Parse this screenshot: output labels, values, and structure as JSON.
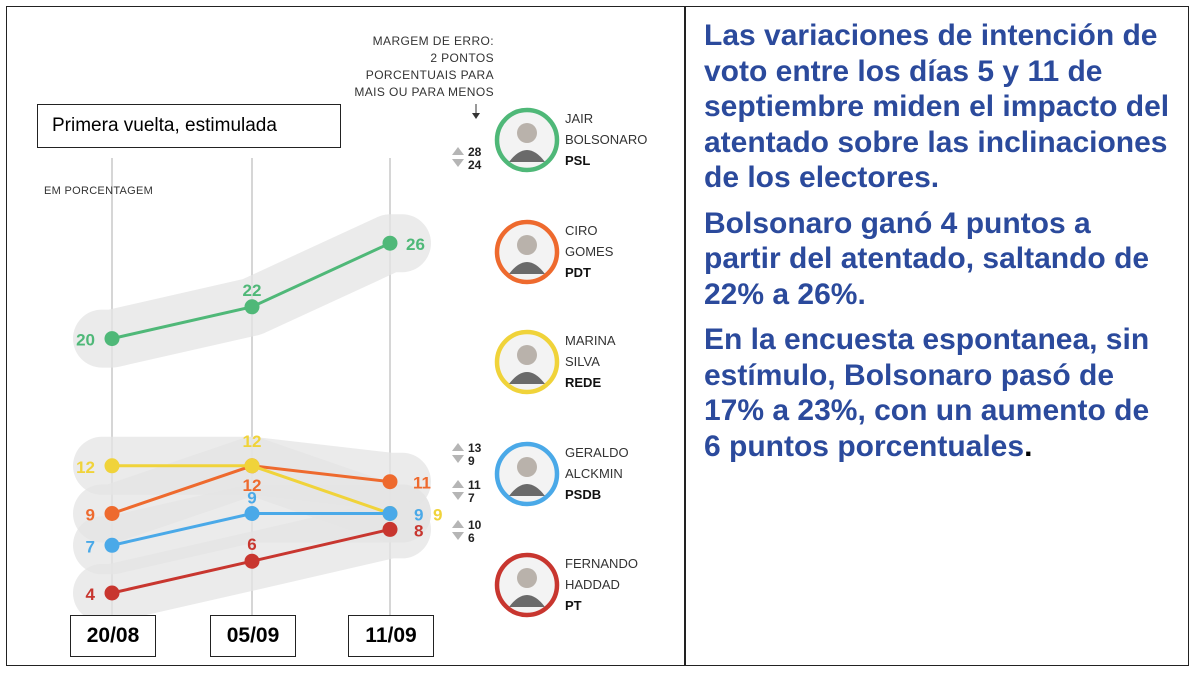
{
  "chart_data": {
    "type": "line",
    "title": "Primera vuelta, estimulada",
    "unit_label": "EM PORCENTAGEM",
    "margin_note": [
      "MARGEM DE ERRO:",
      "2 PONTOS",
      "PORCENTUAIS PARA",
      "MAIS OU PARA MENOS"
    ],
    "categories": [
      "20/08",
      "05/09",
      "11/09"
    ],
    "ylim": [
      0,
      28
    ],
    "series": [
      {
        "name": "JAIR BOLSONARO",
        "party": "PSL",
        "color": "#4fb878",
        "values": [
          20,
          22,
          26
        ],
        "range": [
          "28",
          "24"
        ]
      },
      {
        "name": "CIRO GOMES",
        "party": "PDT",
        "color": "#ee6a2e",
        "values": [
          9,
          12,
          11
        ],
        "range": [
          "13",
          "9"
        ]
      },
      {
        "name": "MARINA SILVA",
        "party": "REDE",
        "color": "#f0d33a",
        "values": [
          12,
          12,
          9
        ],
        "range": null
      },
      {
        "name": "GERALDO ALCKMIN",
        "party": "PSDB",
        "color": "#4aa9e8",
        "values": [
          7,
          9,
          9
        ],
        "range": [
          "11",
          "7"
        ]
      },
      {
        "name": "FERNANDO HADDAD",
        "party": "PT",
        "color": "#c8362f",
        "values": [
          4,
          6,
          8
        ],
        "range": [
          "10",
          "6"
        ]
      }
    ],
    "candidates": [
      {
        "line1": "JAIR",
        "line2": "BOLSONARO",
        "party": "PSL",
        "ring": "#4fb878"
      },
      {
        "line1": "CIRO",
        "line2": "GOMES",
        "party": "PDT",
        "ring": "#ee6a2e"
      },
      {
        "line1": "MARINA",
        "line2": "SILVA",
        "party": "REDE",
        "ring": "#f0d33a"
      },
      {
        "line1": "GERALDO",
        "line2": "ALCKMIN",
        "party": "PSDB",
        "ring": "#4aa9e8"
      },
      {
        "line1": "FERNANDO",
        "line2": "HADDAD",
        "party": "PT",
        "ring": "#c8362f"
      }
    ]
  },
  "right_text": {
    "p1": "Las variaciones de intención de voto entre los días 5 y 11 de septiembre miden el impacto del atentado sobre las inclinaciones de los electores.",
    "p2": "Bolsonaro ganó 4 puntos a partir del atentado, saltando de 22% a 26%.",
    "p3": "En la encuesta espontanea, sin estímulo, Bolsonaro pasó de 17% a 23%, con un aumento de 6 puntos porcentuales",
    "p3_end": "."
  }
}
